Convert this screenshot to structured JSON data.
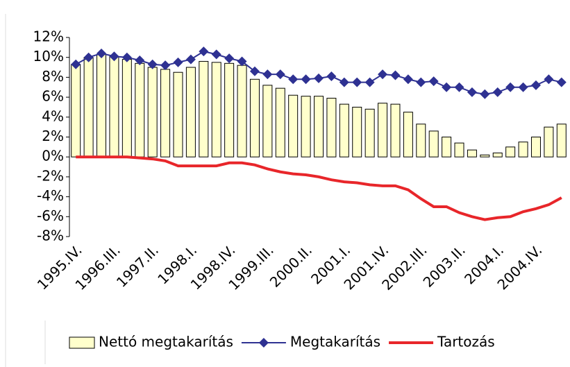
{
  "chart_data": {
    "type": "bar_line",
    "categories": [
      "1995.IV.",
      null,
      null,
      "1996.III.",
      null,
      null,
      "1997.II.",
      null,
      null,
      "1998.I.",
      null,
      null,
      "1998.IV.",
      null,
      null,
      "1999.III.",
      null,
      null,
      "2000.II.",
      null,
      null,
      "2001.I.",
      null,
      null,
      "2001.IV.",
      null,
      null,
      "2002.III.",
      null,
      null,
      "2003.II.",
      null,
      null,
      "2004.I.",
      null,
      null,
      "2004.IV.",
      null,
      null
    ],
    "series": [
      {
        "name": "Nettó megtakarítás",
        "type": "bar",
        "color": "#ffffcc",
        "values": [
          9.3,
          10.0,
          10.3,
          10.1,
          9.8,
          9.4,
          9.0,
          8.8,
          8.5,
          9.0,
          9.6,
          9.5,
          9.4,
          9.2,
          7.8,
          7.2,
          6.9,
          6.2,
          6.1,
          6.1,
          5.9,
          5.3,
          5.0,
          4.8,
          5.4,
          5.3,
          4.5,
          3.3,
          2.6,
          2.0,
          1.4,
          0.7,
          0.2,
          0.4,
          1.0,
          1.5,
          2.0,
          3.0,
          3.3
        ]
      },
      {
        "name": "Megtakarítás",
        "type": "line",
        "marker": "diamond",
        "color": "#2e3192",
        "values": [
          9.3,
          10.0,
          10.4,
          10.1,
          10.0,
          9.7,
          9.3,
          9.2,
          9.5,
          9.8,
          10.6,
          10.3,
          9.9,
          9.6,
          8.6,
          8.3,
          8.3,
          7.8,
          7.8,
          7.9,
          8.1,
          7.5,
          7.5,
          7.5,
          8.3,
          8.2,
          7.8,
          7.5,
          7.6,
          7.0,
          7.0,
          6.5,
          6.3,
          6.5,
          7.0,
          7.0,
          7.2,
          7.8,
          7.5
        ]
      },
      {
        "name": "Tartozás",
        "type": "line",
        "color": "#e8262a",
        "values": [
          0,
          0,
          0,
          0,
          0,
          -0.1,
          -0.2,
          -0.4,
          -0.9,
          -0.9,
          -0.9,
          -0.9,
          -0.6,
          -0.6,
          -0.8,
          -1.2,
          -1.5,
          -1.7,
          -1.8,
          -2.0,
          -2.3,
          -2.5,
          -2.6,
          -2.8,
          -2.9,
          -2.9,
          -3.3,
          -4.2,
          -5.0,
          -5.0,
          -5.6,
          -6.0,
          -6.3,
          -6.1,
          -6.0,
          -5.5,
          -5.2,
          -4.8,
          -4.1
        ]
      }
    ],
    "ylim": [
      -8,
      12
    ],
    "yticks": [
      {
        "value": -8,
        "label": "-8%"
      },
      {
        "value": -6,
        "label": "-6%"
      },
      {
        "value": -4,
        "label": "-4%"
      },
      {
        "value": -2,
        "label": "-2%"
      },
      {
        "value": 0,
        "label": "0%"
      },
      {
        "value": 2,
        "label": "2%"
      },
      {
        "value": 4,
        "label": "4%"
      },
      {
        "value": 6,
        "label": "6%"
      },
      {
        "value": 8,
        "label": "8%"
      },
      {
        "value": 10,
        "label": "10%"
      },
      {
        "value": 12,
        "label": "12%"
      }
    ],
    "grid": false,
    "legend": "bottom"
  }
}
